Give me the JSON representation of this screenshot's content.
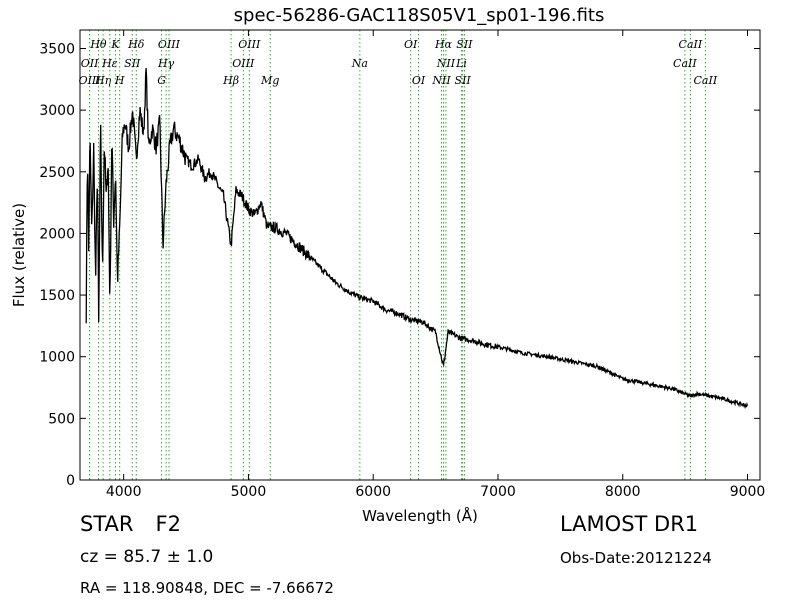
{
  "chart_data": {
    "type": "line",
    "title": "spec-56286-GAC118S05V1_sp01-196.fits",
    "xlabel": "Wavelength (Å)",
    "ylabel": "Flux (relative)",
    "xlim": [
      3650,
      9100
    ],
    "ylim": [
      0,
      3650
    ],
    "xticks": [
      4000,
      5000,
      6000,
      7000,
      8000,
      9000
    ],
    "yticks": [
      0,
      500,
      1000,
      1500,
      2000,
      2500,
      3000,
      3500
    ],
    "grid": false,
    "line_color": "#000000",
    "marker_color": "#33aa33",
    "spectrum_anchors": [
      [
        3700,
        1350
      ],
      [
        3710,
        2700
      ],
      [
        3720,
        1850
      ],
      [
        3730,
        2800
      ],
      [
        3745,
        2000
      ],
      [
        3760,
        2700
      ],
      [
        3775,
        1600
      ],
      [
        3790,
        2550
      ],
      [
        3800,
        1250
      ],
      [
        3815,
        2900
      ],
      [
        3830,
        1650
      ],
      [
        3845,
        2750
      ],
      [
        3860,
        2300
      ],
      [
        3875,
        2600
      ],
      [
        3890,
        1400
      ],
      [
        3905,
        2800
      ],
      [
        3920,
        2100
      ],
      [
        3935,
        2500
      ],
      [
        3950,
        1600
      ],
      [
        3970,
        2100
      ],
      [
        3990,
        2800
      ],
      [
        4010,
        2900
      ],
      [
        4040,
        2700
      ],
      [
        4070,
        3000
      ],
      [
        4101,
        2600
      ],
      [
        4130,
        3000
      ],
      [
        4160,
        2800
      ],
      [
        4180,
        3320
      ],
      [
        4200,
        2700
      ],
      [
        4230,
        2850
      ],
      [
        4260,
        2700
      ],
      [
        4290,
        2900
      ],
      [
        4315,
        1900
      ],
      [
        4340,
        2400
      ],
      [
        4370,
        2700
      ],
      [
        4400,
        2850
      ],
      [
        4450,
        2750
      ],
      [
        4500,
        2600
      ],
      [
        4550,
        2550
      ],
      [
        4600,
        2600
      ],
      [
        4650,
        2450
      ],
      [
        4700,
        2500
      ],
      [
        4750,
        2400
      ],
      [
        4800,
        2300
      ],
      [
        4861,
        1900
      ],
      [
        4900,
        2350
      ],
      [
        4950,
        2300
      ],
      [
        5000,
        2200
      ],
      [
        5050,
        2150
      ],
      [
        5100,
        2250
      ],
      [
        5150,
        2050
      ],
      [
        5200,
        2050
      ],
      [
        5300,
        2000
      ],
      [
        5400,
        1900
      ],
      [
        5500,
        1800
      ],
      [
        5600,
        1700
      ],
      [
        5700,
        1600
      ],
      [
        5800,
        1530
      ],
      [
        5893,
        1480
      ],
      [
        6000,
        1450
      ],
      [
        6100,
        1380
      ],
      [
        6200,
        1350
      ],
      [
        6300,
        1300
      ],
      [
        6400,
        1280
      ],
      [
        6500,
        1200
      ],
      [
        6563,
        920
      ],
      [
        6600,
        1200
      ],
      [
        6700,
        1150
      ],
      [
        6800,
        1130
      ],
      [
        6900,
        1100
      ],
      [
        7000,
        1080
      ],
      [
        7200,
        1030
      ],
      [
        7400,
        1000
      ],
      [
        7600,
        960
      ],
      [
        7800,
        920
      ],
      [
        8000,
        820
      ],
      [
        8200,
        780
      ],
      [
        8400,
        740
      ],
      [
        8542,
        680
      ],
      [
        8600,
        700
      ],
      [
        8800,
        660
      ],
      [
        9000,
        600
      ]
    ],
    "lines": [
      {
        "label": "Hθ",
        "x": 3798,
        "row": 0
      },
      {
        "label": "OII",
        "x": 3727,
        "row": 1
      },
      {
        "label": "OIII",
        "x": 3727,
        "row": 2
      },
      {
        "label": "Hη",
        "x": 3835,
        "row": 2
      },
      {
        "label": "K",
        "x": 3934,
        "row": 0
      },
      {
        "label": "Hε",
        "x": 3889,
        "row": 1
      },
      {
        "label": "H",
        "x": 3968,
        "row": 2
      },
      {
        "label": "SII",
        "x": 4069,
        "row": 1
      },
      {
        "label": "Hδ",
        "x": 4101,
        "row": 0
      },
      {
        "label": "OIII",
        "x": 4363,
        "row": 0
      },
      {
        "label": "Hγ",
        "x": 4340,
        "row": 1
      },
      {
        "label": "G",
        "x": 4304,
        "row": 2
      },
      {
        "label": "OIII",
        "x": 5007,
        "row": 0
      },
      {
        "label": "OIII",
        "x": 4959,
        "row": 1
      },
      {
        "label": "Hβ",
        "x": 4861,
        "row": 2
      },
      {
        "label": "Mg",
        "x": 5175,
        "row": 2
      },
      {
        "label": "Na",
        "x": 5893,
        "row": 1
      },
      {
        "label": "OI",
        "x": 6300,
        "row": 0
      },
      {
        "label": "OI",
        "x": 6363,
        "row": 2
      },
      {
        "label": "Hα",
        "x": 6563,
        "row": 0
      },
      {
        "label": "SII",
        "x": 6731,
        "row": 0
      },
      {
        "label": "NII",
        "x": 6583,
        "row": 1
      },
      {
        "label": "Li",
        "x": 6708,
        "row": 1
      },
      {
        "label": "NII",
        "x": 6548,
        "row": 2
      },
      {
        "label": "SII",
        "x": 6717,
        "row": 2
      },
      {
        "label": "CaII",
        "x": 8542,
        "row": 0
      },
      {
        "label": "CaII",
        "x": 8498,
        "row": 1
      },
      {
        "label": "CaII",
        "x": 8662,
        "row": 2
      }
    ]
  },
  "info": {
    "class": "STAR",
    "subclass": "F2",
    "cz": "cz = 85.7 ± 1.0",
    "radec": "RA = 118.90848, DEC = -7.66672",
    "survey": "LAMOST DR1",
    "obs_date": "Obs-Date:20121224"
  }
}
